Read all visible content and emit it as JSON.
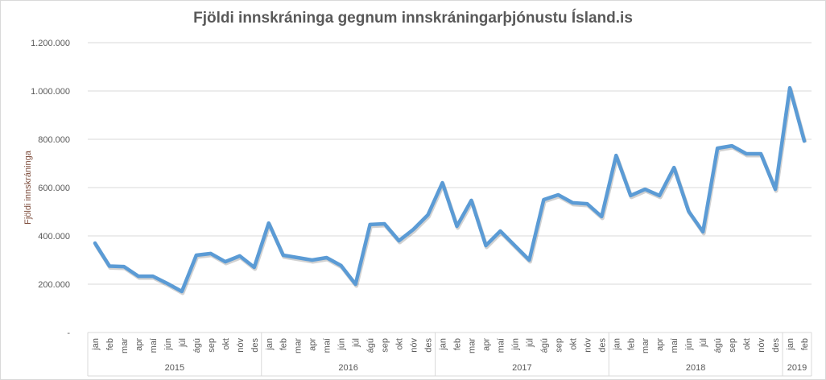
{
  "chart_data": {
    "type": "line",
    "title": "Fjöldi innskráninga  gegnum innskráningarþjónustu  Ísland.is",
    "ylabel": "Fjöldi innskráninga",
    "xlabel": "",
    "ylim": [
      0,
      1200000
    ],
    "yticks": [
      0,
      200000,
      400000,
      600000,
      800000,
      1000000,
      1200000
    ],
    "ytick_labels": [
      "-",
      "200.000",
      "400.000",
      "600.000",
      "800.000",
      "1.000.000",
      "1.200.000"
    ],
    "grid": true,
    "legend": "none",
    "line_color": "#5b9bd5",
    "years": [
      {
        "label": "2015",
        "months": [
          "jan",
          "feb",
          "mar",
          "apr",
          "maí",
          "jún",
          "júl",
          "ágú",
          "sep",
          "okt",
          "nóv",
          "des"
        ]
      },
      {
        "label": "2016",
        "months": [
          "jan",
          "feb",
          "mar",
          "apr",
          "maí",
          "jún",
          "júl",
          "ágú",
          "sep",
          "okt",
          "nóv",
          "des"
        ]
      },
      {
        "label": "2017",
        "months": [
          "jan",
          "feb",
          "mar",
          "apr",
          "maí",
          "jún",
          "júl",
          "ágú",
          "sep",
          "okt",
          "nóv",
          "des"
        ]
      },
      {
        "label": "2018",
        "months": [
          "jan",
          "feb",
          "mar",
          "apr",
          "maí",
          "jún",
          "júl",
          "ágú",
          "sep",
          "okt",
          "nóv",
          "des"
        ]
      },
      {
        "label": "2019",
        "months": [
          "jan",
          "feb"
        ]
      }
    ],
    "values": [
      370000,
      275000,
      273000,
      233000,
      233000,
      203000,
      170000,
      320000,
      327000,
      293000,
      317000,
      270000,
      453000,
      320000,
      310000,
      300000,
      310000,
      277000,
      200000,
      447000,
      450000,
      380000,
      427000,
      487000,
      620000,
      440000,
      547000,
      360000,
      420000,
      360000,
      300000,
      550000,
      570000,
      537000,
      533000,
      480000,
      733000,
      567000,
      593000,
      567000,
      683000,
      503000,
      417000,
      763000,
      773000,
      740000,
      740000,
      593000,
      1013000,
      793000
    ]
  }
}
